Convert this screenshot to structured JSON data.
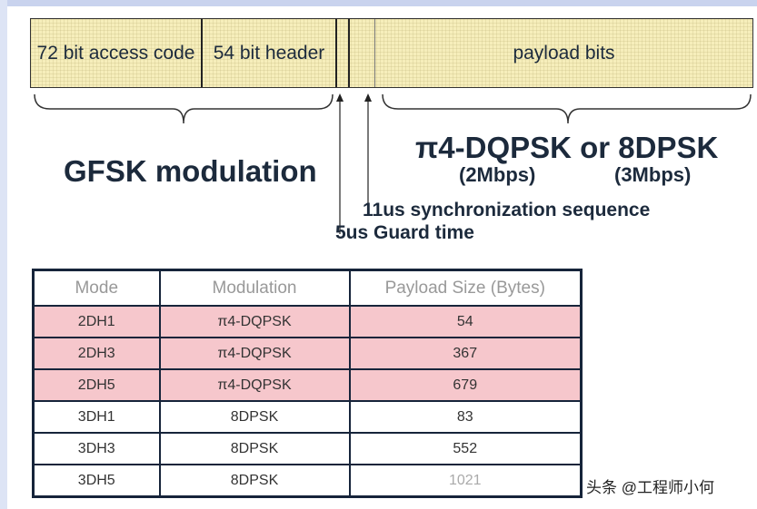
{
  "packet": {
    "segments": [
      "72 bit access code",
      "54 bit header",
      "",
      "",
      "payload bits"
    ]
  },
  "labels": {
    "gfsk": "GFSK modulation",
    "edr": "π4-DQPSK or 8DPSK",
    "rate2": "(2Mbps)",
    "rate3": "(3Mbps)",
    "sync": "11us synchronization sequence",
    "guard": "5us Guard time"
  },
  "table": {
    "headers": [
      "Mode",
      "Modulation",
      "Payload Size (Bytes)"
    ],
    "rows": [
      [
        "2DH1",
        "π4-DQPSK",
        "54"
      ],
      [
        "2DH3",
        "π4-DQPSK",
        "367"
      ],
      [
        "2DH5",
        "π4-DQPSK",
        "679"
      ],
      [
        "3DH1",
        "8DPSK",
        "83"
      ],
      [
        "3DH3",
        "8DPSK",
        "552"
      ],
      [
        "3DH5",
        "8DPSK",
        "1021"
      ]
    ]
  },
  "watermark": "头条 @工程师小何",
  "colors": {
    "packet_fill": "#f6eebb",
    "highlight_row": "#f6c7cc",
    "border": "#16243a"
  }
}
